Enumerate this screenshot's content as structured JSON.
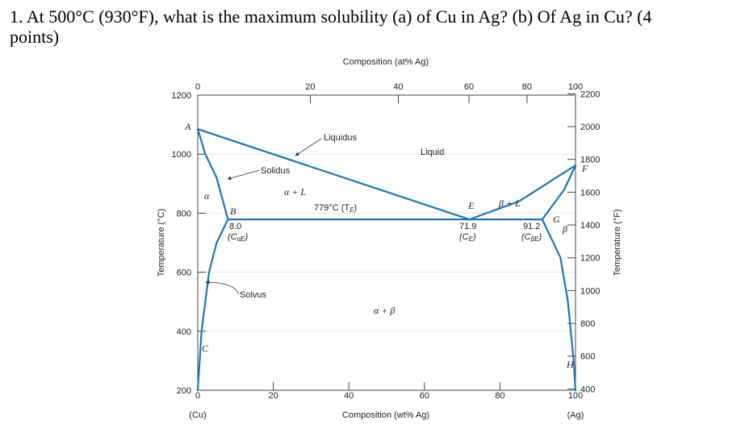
{
  "question": {
    "line1": "1. At 500°C (930°F), what is the maximum solubility (a) of Cu in Ag?  (b) Of Ag in Cu? (4",
    "line2": "points)"
  },
  "chart_data": {
    "type": "line",
    "title_top": "Composition (at% Ag)",
    "xlabel_bottom": "Composition (wt% Ag)",
    "ylabel_left": "Temperature (°C)",
    "ylabel_right": "Temperature (°F)",
    "x_bottom_ticks": [
      "0",
      "20",
      "40",
      "60",
      "80",
      "100"
    ],
    "x_bottom_values": [
      0,
      20,
      40,
      60,
      80,
      100
    ],
    "x_top_ticks": [
      "0",
      "20",
      "40",
      "60",
      "80",
      "100"
    ],
    "x_top_values": [
      0,
      20,
      40,
      60,
      80,
      100
    ],
    "y_left_ticks": [
      "200",
      "400",
      "600",
      "800",
      "1000",
      "1200"
    ],
    "y_left_values": [
      200,
      400,
      600,
      800,
      1000,
      1200
    ],
    "y_right_ticks": [
      "400",
      "600",
      "800",
      "1000",
      "1200",
      "1400",
      "1600",
      "1800",
      "2000",
      "2200"
    ],
    "y_right_values": [
      400,
      600,
      800,
      1000,
      1200,
      1400,
      1600,
      1800,
      2000,
      2200
    ],
    "end_labels": {
      "left": "(Cu)",
      "right": "(Ag)"
    },
    "xlim": [
      0,
      100
    ],
    "ylim": [
      200,
      1200
    ],
    "series": [
      {
        "values": [
          [
            0,
            1085
          ],
          [
            71.9,
            779
          ]
        ]
      },
      {
        "values": [
          [
            0,
            1085
          ],
          [
            2,
            1000
          ],
          [
            5,
            920
          ],
          [
            8,
            779
          ]
        ]
      },
      {
        "values": [
          [
            8,
            779
          ],
          [
            5,
            700
          ],
          [
            3,
            600
          ],
          [
            1,
            400
          ],
          [
            0,
            200
          ]
        ]
      },
      {
        "values": [
          [
            8,
            779
          ],
          [
            91.2,
            779
          ]
        ]
      },
      {
        "values": [
          [
            71.9,
            779
          ],
          [
            85,
            840
          ],
          [
            100,
            962
          ]
        ]
      },
      {
        "values": [
          [
            91.2,
            779
          ],
          [
            97,
            880
          ],
          [
            100,
            962
          ]
        ]
      },
      {
        "values": [
          [
            91.2,
            779
          ],
          [
            96,
            650
          ],
          [
            98,
            500
          ],
          [
            99.5,
            300
          ],
          [
            100,
            200
          ]
        ]
      }
    ],
    "annotations": {
      "A": "A",
      "B": "B",
      "C": "C",
      "E": "E",
      "F": "F",
      "G": "G",
      "H": "H",
      "liquidus": "Liquidus",
      "solidus": "Solidus",
      "solvus": "Solvus",
      "liquid": "Liquid",
      "alpha": "α",
      "beta": "β",
      "alpha_L": "α + L",
      "beta_L": "β + L",
      "alpha_beta": "α + β",
      "eutectic": "779°C (T",
      "eutectic_sub": "E",
      "b_comp": "8.0",
      "b_note": "(C",
      "b_note_sub": "αE",
      "e_comp": "71.9",
      "e_note": "(C",
      "e_note_sub": "E",
      "g_comp": "91.2",
      "g_note": "(C",
      "g_note_sub": "βE",
      "paren_close": ")"
    }
  }
}
